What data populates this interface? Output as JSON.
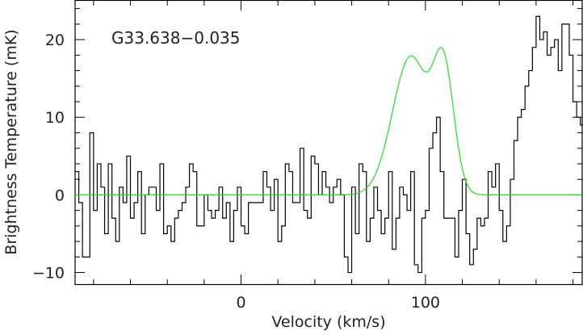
{
  "chart_data": {
    "type": "line",
    "title": "",
    "annotation": "G33.638−0.035",
    "xlabel": "Velocity (km/s)",
    "ylabel": "Brightness Temperature (mK)",
    "xlim": [
      -90,
      185
    ],
    "ylim": [
      -11.5,
      25
    ],
    "xticks_major": [
      0,
      100
    ],
    "xticks_minor_step": 20,
    "yticks_major": [
      -10,
      0,
      10,
      20
    ],
    "yticks_minor_step": 2,
    "grid": false,
    "series": [
      {
        "style": "histogram",
        "color": "#000000",
        "bin_start": -90,
        "bin_width": 2,
        "values": [
          3,
          -1,
          -8,
          -8,
          8,
          -2,
          4,
          1,
          -5,
          4,
          -3,
          -6,
          1,
          -1,
          5,
          -3,
          -1,
          3,
          -5,
          0,
          1,
          1,
          -2,
          4,
          -5,
          -4,
          -6,
          -3,
          -2,
          -1,
          1,
          4,
          3,
          -4,
          -4,
          0,
          -2,
          -3,
          -2,
          1,
          -3,
          -1,
          -6,
          -2,
          1,
          -4,
          -5,
          -1,
          -1,
          -1,
          -1,
          3,
          1,
          -2,
          2,
          -6,
          -4,
          4,
          3,
          -1,
          -1,
          6,
          -2,
          -3,
          5,
          4,
          0,
          3,
          1,
          -1,
          1,
          2,
          0,
          -8,
          -10,
          1,
          -5,
          4,
          3,
          -6,
          -3,
          1,
          -2,
          -5,
          -3,
          3,
          -7,
          -3,
          1,
          0,
          -2,
          3,
          -9,
          -10,
          -3,
          -2,
          6,
          8,
          10,
          3,
          -3,
          -3,
          -3,
          -8,
          -2,
          2,
          -5,
          -9,
          -7,
          -3,
          -4,
          -3,
          3,
          1,
          4,
          -2,
          -6,
          -4,
          2,
          7,
          10,
          11,
          14,
          16,
          19,
          23,
          20,
          21,
          18,
          19,
          20,
          16,
          22,
          22,
          18,
          12,
          10,
          9,
          6,
          2,
          -1,
          1,
          0,
          0,
          1,
          5,
          -2,
          -3,
          -3,
          -1,
          -6,
          -2,
          -3,
          3,
          -1,
          -2,
          -1,
          0,
          3,
          -5,
          -3,
          -6,
          -2,
          1,
          4,
          0,
          -1,
          -3,
          -4,
          3,
          -1,
          4,
          -4,
          -2,
          -6,
          -2,
          -5,
          -1,
          3,
          0,
          2,
          -3,
          -6,
          -7,
          -2,
          0,
          -2,
          -3,
          -2,
          -1,
          3,
          2
        ]
      },
      {
        "style": "line",
        "color": "#22dd22",
        "fit": {
          "kind": "two-gaussian",
          "components": [
            {
              "amplitude": 17.8,
              "center": 92,
              "sigma": 9.8
            },
            {
              "amplitude": 15.2,
              "center": 110,
              "sigma": 5.6
            }
          ]
        }
      }
    ]
  }
}
